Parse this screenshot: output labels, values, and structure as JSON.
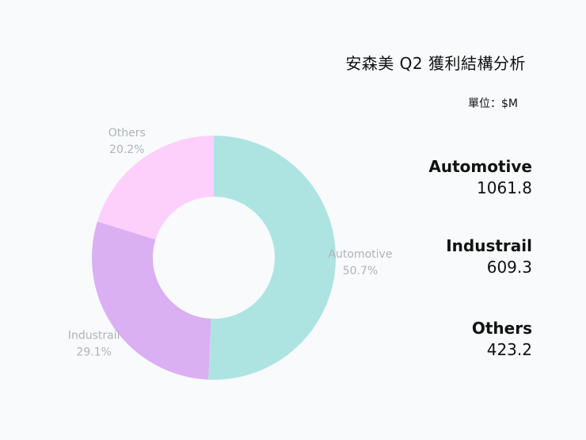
{
  "header": {
    "title": "安森美 Q2 獲利結構分析",
    "unit": "單位：$M"
  },
  "colors": {
    "automotive": "#ade4e2",
    "industrail": "#dbb0f3",
    "others": "#fdd0fc",
    "label_gray": "#aeb4bb",
    "background": "#f8fafc"
  },
  "chart_data": {
    "type": "pie",
    "donut": true,
    "categories": [
      "Automotive",
      "Industrail",
      "Others"
    ],
    "values": [
      1061.8,
      609.3,
      423.2
    ],
    "percent_labels": [
      "50.7%",
      "29.1%",
      "20.2%"
    ],
    "start_angle_deg": 0,
    "direction": "clockwise",
    "legend": "right"
  },
  "stats": [
    {
      "name": "Automotive",
      "value": "1061.8"
    },
    {
      "name": "Industrail",
      "value": "609.3"
    },
    {
      "name": "Others",
      "value": "423.2"
    }
  ]
}
